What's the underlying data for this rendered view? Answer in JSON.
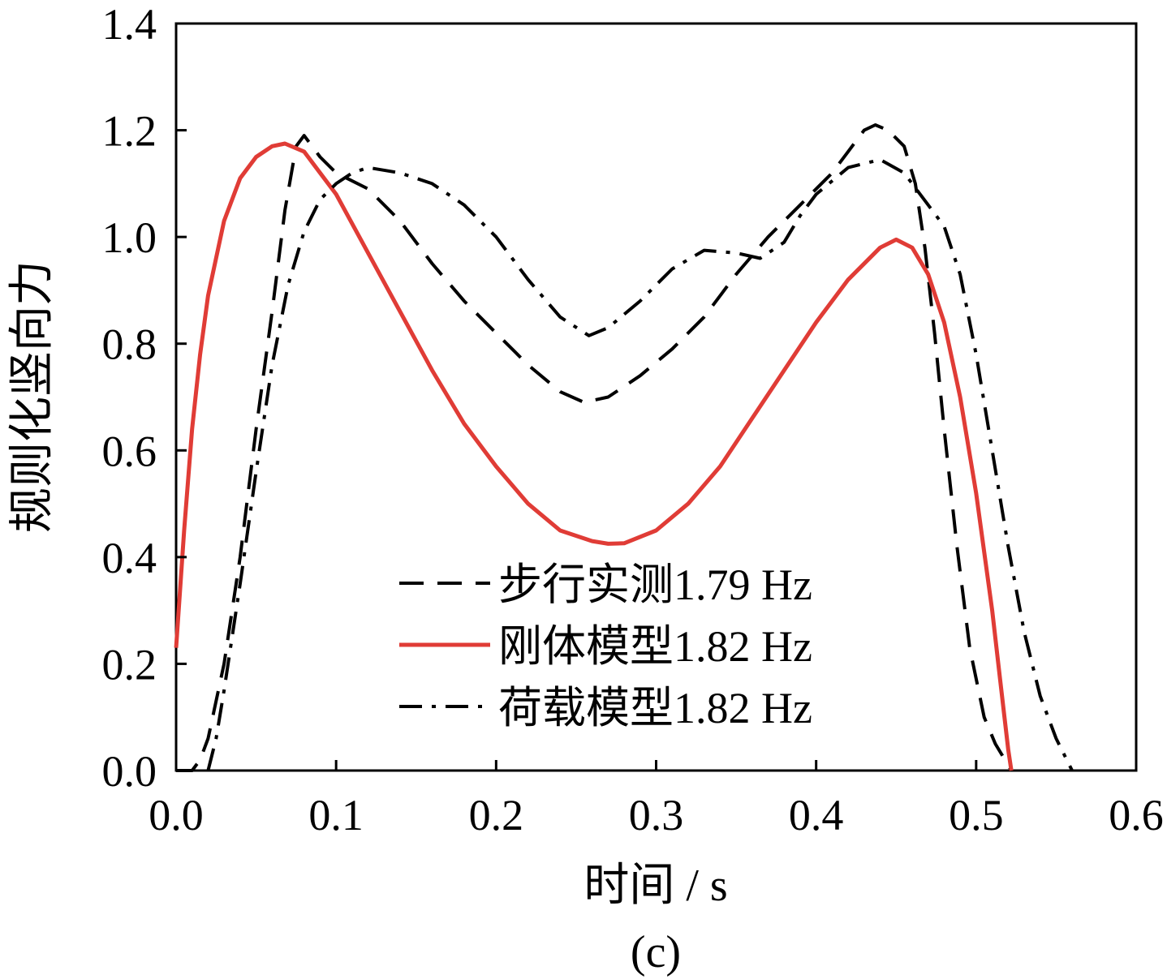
{
  "chart_data": {
    "type": "line",
    "panel_label": "(c)",
    "xlabel": "时间 / s",
    "ylabel": "规则化竖向力",
    "xlim": [
      0.0,
      0.6
    ],
    "ylim": [
      0.0,
      1.4
    ],
    "x_ticks": [
      "0.0",
      "0.1",
      "0.2",
      "0.3",
      "0.4",
      "0.5",
      "0.6"
    ],
    "y_ticks": [
      "0.0",
      "0.2",
      "0.4",
      "0.6",
      "0.8",
      "1.0",
      "1.2",
      "1.4"
    ],
    "grid": false,
    "legend_position": "bottom-right",
    "series": [
      {
        "name": "步行实测1.79 Hz",
        "style": "dashed",
        "color": "#000000",
        "points": [
          [
            0.0,
            0.0
          ],
          [
            0.005,
            0.0
          ],
          [
            0.01,
            0.0
          ],
          [
            0.015,
            0.02
          ],
          [
            0.02,
            0.06
          ],
          [
            0.03,
            0.2
          ],
          [
            0.04,
            0.4
          ],
          [
            0.05,
            0.64
          ],
          [
            0.06,
            0.86
          ],
          [
            0.068,
            1.05
          ],
          [
            0.075,
            1.17
          ],
          [
            0.08,
            1.19
          ],
          [
            0.09,
            1.15
          ],
          [
            0.1,
            1.12
          ],
          [
            0.12,
            1.09
          ],
          [
            0.14,
            1.03
          ],
          [
            0.16,
            0.95
          ],
          [
            0.18,
            0.88
          ],
          [
            0.2,
            0.82
          ],
          [
            0.22,
            0.76
          ],
          [
            0.24,
            0.71
          ],
          [
            0.255,
            0.69
          ],
          [
            0.27,
            0.7
          ],
          [
            0.29,
            0.74
          ],
          [
            0.31,
            0.79
          ],
          [
            0.33,
            0.85
          ],
          [
            0.35,
            0.93
          ],
          [
            0.37,
            1.0
          ],
          [
            0.39,
            1.06
          ],
          [
            0.41,
            1.12
          ],
          [
            0.42,
            1.16
          ],
          [
            0.43,
            1.2
          ],
          [
            0.437,
            1.21
          ],
          [
            0.445,
            1.2
          ],
          [
            0.455,
            1.17
          ],
          [
            0.462,
            1.1
          ],
          [
            0.468,
            0.98
          ],
          [
            0.474,
            0.82
          ],
          [
            0.48,
            0.64
          ],
          [
            0.488,
            0.42
          ],
          [
            0.496,
            0.23
          ],
          [
            0.505,
            0.1
          ],
          [
            0.512,
            0.05
          ],
          [
            0.52,
            0.01
          ],
          [
            0.522,
            0.0
          ]
        ]
      },
      {
        "name": "刚体模型1.82 Hz",
        "style": "solid",
        "color": "#e03c36",
        "points": [
          [
            0.0,
            0.23
          ],
          [
            0.005,
            0.45
          ],
          [
            0.01,
            0.64
          ],
          [
            0.015,
            0.78
          ],
          [
            0.02,
            0.89
          ],
          [
            0.03,
            1.03
          ],
          [
            0.04,
            1.11
          ],
          [
            0.05,
            1.15
          ],
          [
            0.06,
            1.17
          ],
          [
            0.068,
            1.175
          ],
          [
            0.08,
            1.16
          ],
          [
            0.1,
            1.08
          ],
          [
            0.12,
            0.97
          ],
          [
            0.14,
            0.86
          ],
          [
            0.16,
            0.75
          ],
          [
            0.18,
            0.65
          ],
          [
            0.2,
            0.57
          ],
          [
            0.22,
            0.5
          ],
          [
            0.24,
            0.45
          ],
          [
            0.26,
            0.43
          ],
          [
            0.27,
            0.425
          ],
          [
            0.28,
            0.426
          ],
          [
            0.3,
            0.45
          ],
          [
            0.32,
            0.5
          ],
          [
            0.34,
            0.57
          ],
          [
            0.36,
            0.66
          ],
          [
            0.38,
            0.75
          ],
          [
            0.4,
            0.84
          ],
          [
            0.42,
            0.92
          ],
          [
            0.44,
            0.98
          ],
          [
            0.45,
            0.995
          ],
          [
            0.46,
            0.98
          ],
          [
            0.47,
            0.93
          ],
          [
            0.48,
            0.84
          ],
          [
            0.49,
            0.7
          ],
          [
            0.5,
            0.52
          ],
          [
            0.51,
            0.3
          ],
          [
            0.515,
            0.17
          ],
          [
            0.52,
            0.04
          ],
          [
            0.522,
            0.0
          ]
        ]
      },
      {
        "name": "荷载模型1.82 Hz",
        "style": "dashdot",
        "color": "#000000",
        "points": [
          [
            0.02,
            0.0
          ],
          [
            0.025,
            0.06
          ],
          [
            0.03,
            0.15
          ],
          [
            0.04,
            0.35
          ],
          [
            0.05,
            0.56
          ],
          [
            0.06,
            0.76
          ],
          [
            0.07,
            0.91
          ],
          [
            0.08,
            1.01
          ],
          [
            0.09,
            1.07
          ],
          [
            0.1,
            1.1
          ],
          [
            0.11,
            1.12
          ],
          [
            0.12,
            1.13
          ],
          [
            0.14,
            1.12
          ],
          [
            0.16,
            1.1
          ],
          [
            0.18,
            1.06
          ],
          [
            0.2,
            1.0
          ],
          [
            0.22,
            0.92
          ],
          [
            0.24,
            0.85
          ],
          [
            0.258,
            0.815
          ],
          [
            0.27,
            0.83
          ],
          [
            0.29,
            0.88
          ],
          [
            0.31,
            0.94
          ],
          [
            0.33,
            0.975
          ],
          [
            0.35,
            0.97
          ],
          [
            0.365,
            0.96
          ],
          [
            0.38,
            0.99
          ],
          [
            0.39,
            1.04
          ],
          [
            0.4,
            1.08
          ],
          [
            0.42,
            1.13
          ],
          [
            0.44,
            1.145
          ],
          [
            0.455,
            1.12
          ],
          [
            0.47,
            1.06
          ],
          [
            0.48,
            1.02
          ],
          [
            0.49,
            0.93
          ],
          [
            0.5,
            0.78
          ],
          [
            0.51,
            0.6
          ],
          [
            0.52,
            0.42
          ],
          [
            0.53,
            0.26
          ],
          [
            0.54,
            0.14
          ],
          [
            0.55,
            0.06
          ],
          [
            0.56,
            0.0
          ]
        ]
      }
    ]
  }
}
